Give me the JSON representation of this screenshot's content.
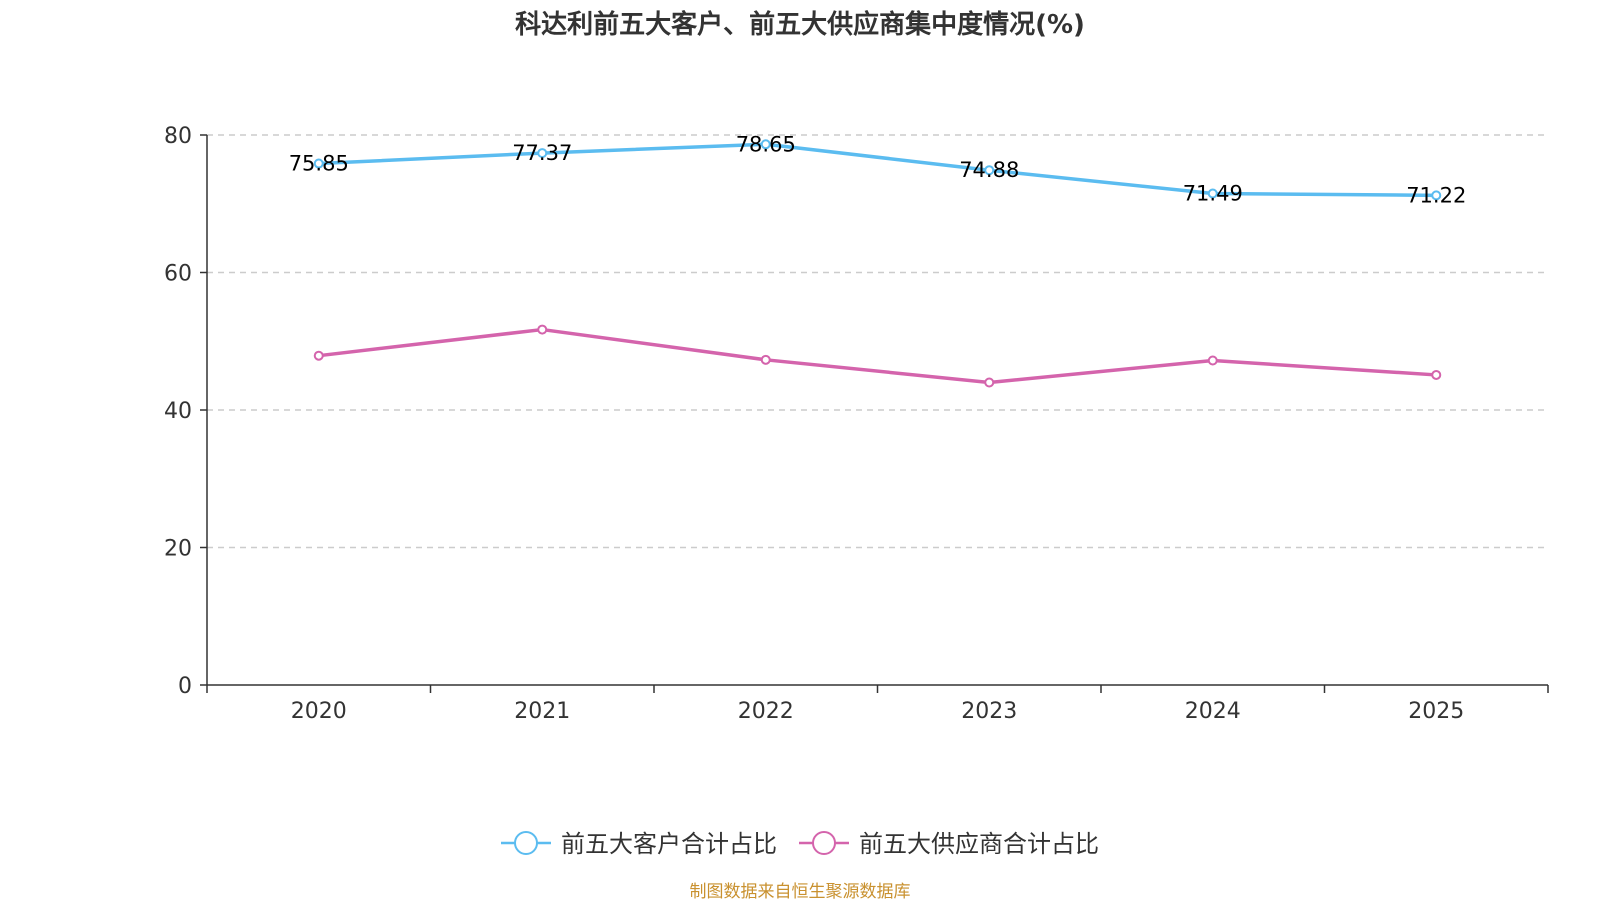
{
  "chart_data": {
    "type": "line",
    "title": "科达利前五大客户、前五大供应商集中度情况(%)",
    "categories": [
      "2020",
      "2021",
      "2022",
      "2023",
      "2024",
      "2025"
    ],
    "xlabel": "",
    "ylabel": "",
    "ylim": [
      0,
      80
    ],
    "yticks": [
      0,
      20,
      40,
      60,
      80
    ],
    "grid": true,
    "legend_position": "bottom-center",
    "series": [
      {
        "name": "前五大客户合计占比",
        "color": "#5bbcf0",
        "values": [
          75.85,
          77.37,
          78.65,
          74.88,
          71.49,
          71.22
        ],
        "labels": [
          "75.85",
          "77.37",
          "78.65",
          "74.88",
          "71.49",
          "71.22"
        ]
      },
      {
        "name": "前五大供应商合计占比",
        "color": "#d464ac",
        "values": [
          47.9,
          51.7,
          47.3,
          44.0,
          47.2,
          45.1
        ]
      }
    ],
    "source": "制图数据来自恒生聚源数据库"
  }
}
